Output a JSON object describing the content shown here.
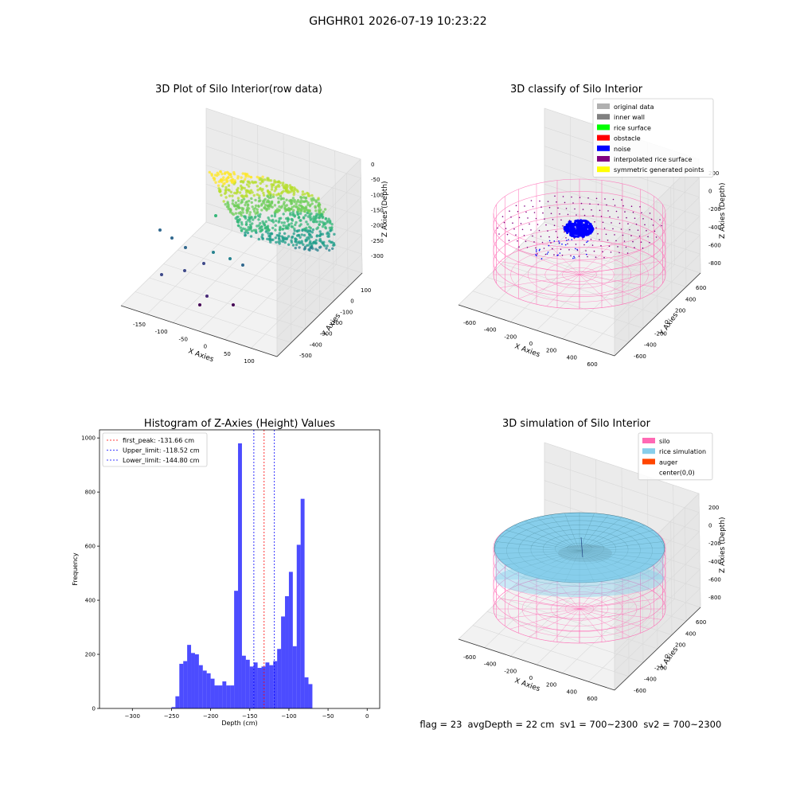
{
  "suptitle": "GHGHR01 2026-07-19 10:23:22",
  "colors": {
    "hist": "#0000ff",
    "peak": "#ff0000",
    "limits": "#0000ff",
    "silo": "#ff69b4",
    "rice": "#87ceeb",
    "auger": "#ff4500",
    "viridis_dark": "#440154",
    "viridis_mid": "#21918c",
    "viridis_light": "#fde725"
  },
  "panels": [
    {
      "title": "3D Plot of Silo Interior(row data)",
      "x_label": "X Axies",
      "y_label": "Y Axies",
      "z_label": "Z Axies (Depth)",
      "x_ticks": [
        "-150",
        "-100",
        "-50",
        "0",
        "50",
        "100"
      ],
      "y_ticks": [
        "100",
        "0",
        "-100",
        "-200",
        "-300",
        "-400",
        "-500"
      ],
      "z_ticks": [
        "0",
        "-50",
        "-100",
        "-150",
        "-200",
        "-250",
        "-300"
      ]
    },
    {
      "title": "3D classify of Silo Interior",
      "x_label": "X Axies",
      "y_label": "Y Axies",
      "z_label": "Z Axies (Depth)",
      "x_ticks": [
        "-600",
        "-400",
        "-200",
        "0",
        "200",
        "400",
        "600"
      ],
      "y_ticks": [
        "600",
        "400",
        "200",
        "0",
        "-200",
        "-400",
        "-600"
      ],
      "z_ticks": [
        "200",
        "0",
        "-200",
        "-400",
        "-600",
        "-800"
      ],
      "legend": [
        {
          "label": "original data",
          "color": "#b0b0b0"
        },
        {
          "label": "inner wall",
          "color": "#808080"
        },
        {
          "label": "rice surface",
          "color": "#00ff00"
        },
        {
          "label": "obstacle",
          "color": "#ff0000"
        },
        {
          "label": "noise",
          "color": "#0000ff"
        },
        {
          "label": "interpolated rice surface",
          "color": "#800080"
        },
        {
          "label": "symmetric generated points",
          "color": "#ffff00"
        }
      ]
    },
    {
      "title": "3D simulation of Silo Interior",
      "x_label": "X Axies",
      "y_label": "Y Axies",
      "z_label": "Z Axies (Depth)",
      "x_ticks": [
        "-600",
        "-400",
        "-200",
        "0",
        "200",
        "400",
        "600"
      ],
      "y_ticks": [
        "600",
        "400",
        "200",
        "0",
        "-200",
        "-400",
        "-600"
      ],
      "z_ticks": [
        "200",
        "0",
        "-200",
        "-400",
        "-600",
        "-800"
      ],
      "legend": [
        {
          "label": "silo",
          "color": "#ff69b4"
        },
        {
          "label": "rice simulation",
          "color": "#87ceeb"
        },
        {
          "label": "auger",
          "color": "#ff4500"
        },
        {
          "label": "center(0,0)",
          "color": ""
        }
      ]
    }
  ],
  "footer": {
    "flag": "flag = 23",
    "avg_depth": "avgDepth = 22 cm",
    "sv1": "sv1 = 700~2300",
    "sv2": "sv2 = 700~2300"
  },
  "chart_data": [
    {
      "type": "bar",
      "title": "Histogram of Z-Axies (Height) Values",
      "xlabel": "Depth (cm)",
      "ylabel": "Frequency",
      "xlim": [
        -342,
        16
      ],
      "ylim": [
        0,
        1030
      ],
      "x_ticks": [
        -300,
        -250,
        -200,
        -150,
        -100,
        -50,
        0
      ],
      "y_ticks": [
        0,
        200,
        400,
        600,
        800,
        1000
      ],
      "bin_start": -250,
      "bin_width": 5,
      "values": [
        5,
        45,
        165,
        175,
        235,
        205,
        200,
        160,
        140,
        130,
        110,
        85,
        85,
        100,
        85,
        85,
        435,
        980,
        195,
        180,
        155,
        170,
        150,
        155,
        170,
        160,
        175,
        220,
        340,
        415,
        505,
        230,
        605,
        775,
        115,
        90
      ],
      "vlines": [
        {
          "label": "first_peak: -131.66 cm",
          "x": -131.66,
          "style": "peak"
        },
        {
          "label": "Upper_limit: -118.52 cm",
          "x": -118.52,
          "style": "limit"
        },
        {
          "label": "Lower_limit: -144.80 cm",
          "x": -144.8,
          "style": "limit"
        }
      ]
    }
  ]
}
